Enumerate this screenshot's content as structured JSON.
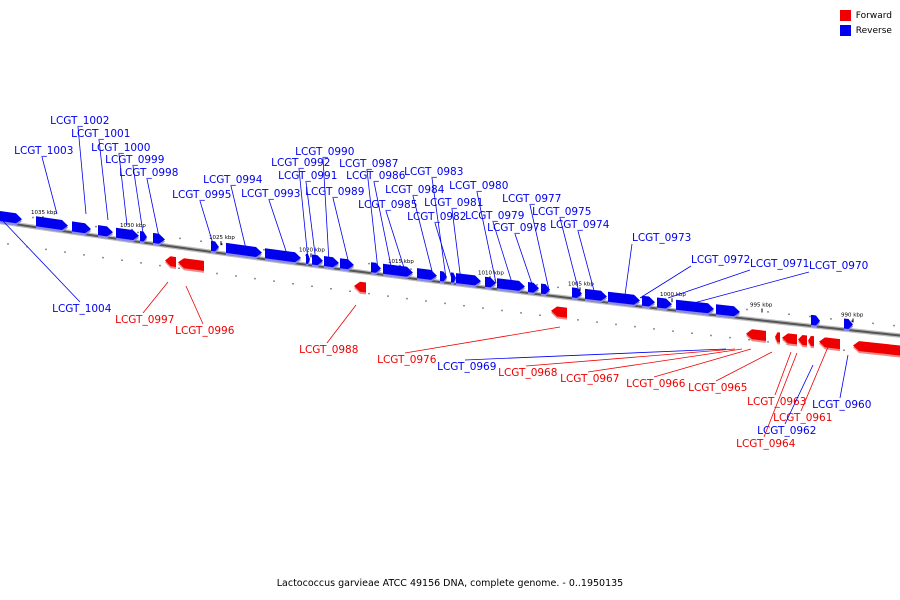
{
  "colors": {
    "forward": "#ee0000",
    "reverse": "#0000ee",
    "backbone": "#555555"
  },
  "legend": [
    {
      "label": "Forward",
      "strand": "forward"
    },
    {
      "label": "Reverse",
      "strand": "reverse"
    }
  ],
  "caption": "Lactococcus garvieae ATCC 49156 DNA, complete genome. - 0..1950135",
  "ticks": [
    "1035 kbp",
    "1030 kbp",
    "1025 kbp",
    "1020 kbp",
    "1015 kbp",
    "1010 kbp",
    "1005 kbp",
    "1000 kbp",
    "995 kbp",
    "990 kbp"
  ],
  "genes": [
    {
      "label": "LCGT_1004",
      "strand": "reverse"
    },
    {
      "label": "LCGT_1003",
      "strand": "reverse"
    },
    {
      "label": "LCGT_1002",
      "strand": "reverse"
    },
    {
      "label": "LCGT_1001",
      "strand": "reverse"
    },
    {
      "label": "LCGT_1000",
      "strand": "reverse"
    },
    {
      "label": "LCGT_0999",
      "strand": "reverse"
    },
    {
      "label": "LCGT_0998",
      "strand": "reverse"
    },
    {
      "label": "LCGT_0997",
      "strand": "forward"
    },
    {
      "label": "LCGT_0996",
      "strand": "forward"
    },
    {
      "label": "LCGT_0995",
      "strand": "reverse"
    },
    {
      "label": "LCGT_0994",
      "strand": "reverse"
    },
    {
      "label": "LCGT_0993",
      "strand": "reverse"
    },
    {
      "label": "LCGT_0992",
      "strand": "reverse"
    },
    {
      "label": "LCGT_0991",
      "strand": "reverse"
    },
    {
      "label": "LCGT_0990",
      "strand": "reverse"
    },
    {
      "label": "LCGT_0989",
      "strand": "reverse"
    },
    {
      "label": "LCGT_0988",
      "strand": "forward"
    },
    {
      "label": "LCGT_0987",
      "strand": "reverse"
    },
    {
      "label": "LCGT_0986",
      "strand": "reverse"
    },
    {
      "label": "LCGT_0985",
      "strand": "reverse"
    },
    {
      "label": "LCGT_0984",
      "strand": "reverse"
    },
    {
      "label": "LCGT_0983",
      "strand": "reverse"
    },
    {
      "label": "LCGT_0982",
      "strand": "reverse"
    },
    {
      "label": "LCGT_0981",
      "strand": "reverse"
    },
    {
      "label": "LCGT_0980",
      "strand": "reverse"
    },
    {
      "label": "LCGT_0979",
      "strand": "reverse"
    },
    {
      "label": "LCGT_0978",
      "strand": "reverse"
    },
    {
      "label": "LCGT_0977",
      "strand": "reverse"
    },
    {
      "label": "LCGT_0976",
      "strand": "forward"
    },
    {
      "label": "LCGT_0975",
      "strand": "reverse"
    },
    {
      "label": "LCGT_0974",
      "strand": "reverse"
    },
    {
      "label": "LCGT_0973",
      "strand": "reverse"
    },
    {
      "label": "LCGT_0972",
      "strand": "reverse"
    },
    {
      "label": "LCGT_0971",
      "strand": "reverse"
    },
    {
      "label": "LCGT_0970",
      "strand": "reverse"
    },
    {
      "label": "LCGT_0969",
      "strand": "reverse"
    },
    {
      "label": "LCGT_0968",
      "strand": "forward"
    },
    {
      "label": "LCGT_0967",
      "strand": "forward"
    },
    {
      "label": "LCGT_0966",
      "strand": "forward"
    },
    {
      "label": "LCGT_0965",
      "strand": "forward"
    },
    {
      "label": "LCGT_0963",
      "strand": "forward"
    },
    {
      "label": "LCGT_0961",
      "strand": "forward"
    },
    {
      "label": "LCGT_0962",
      "strand": "reverse"
    },
    {
      "label": "LCGT_0964",
      "strand": "forward"
    },
    {
      "label": "LCGT_0960",
      "strand": "reverse"
    }
  ]
}
